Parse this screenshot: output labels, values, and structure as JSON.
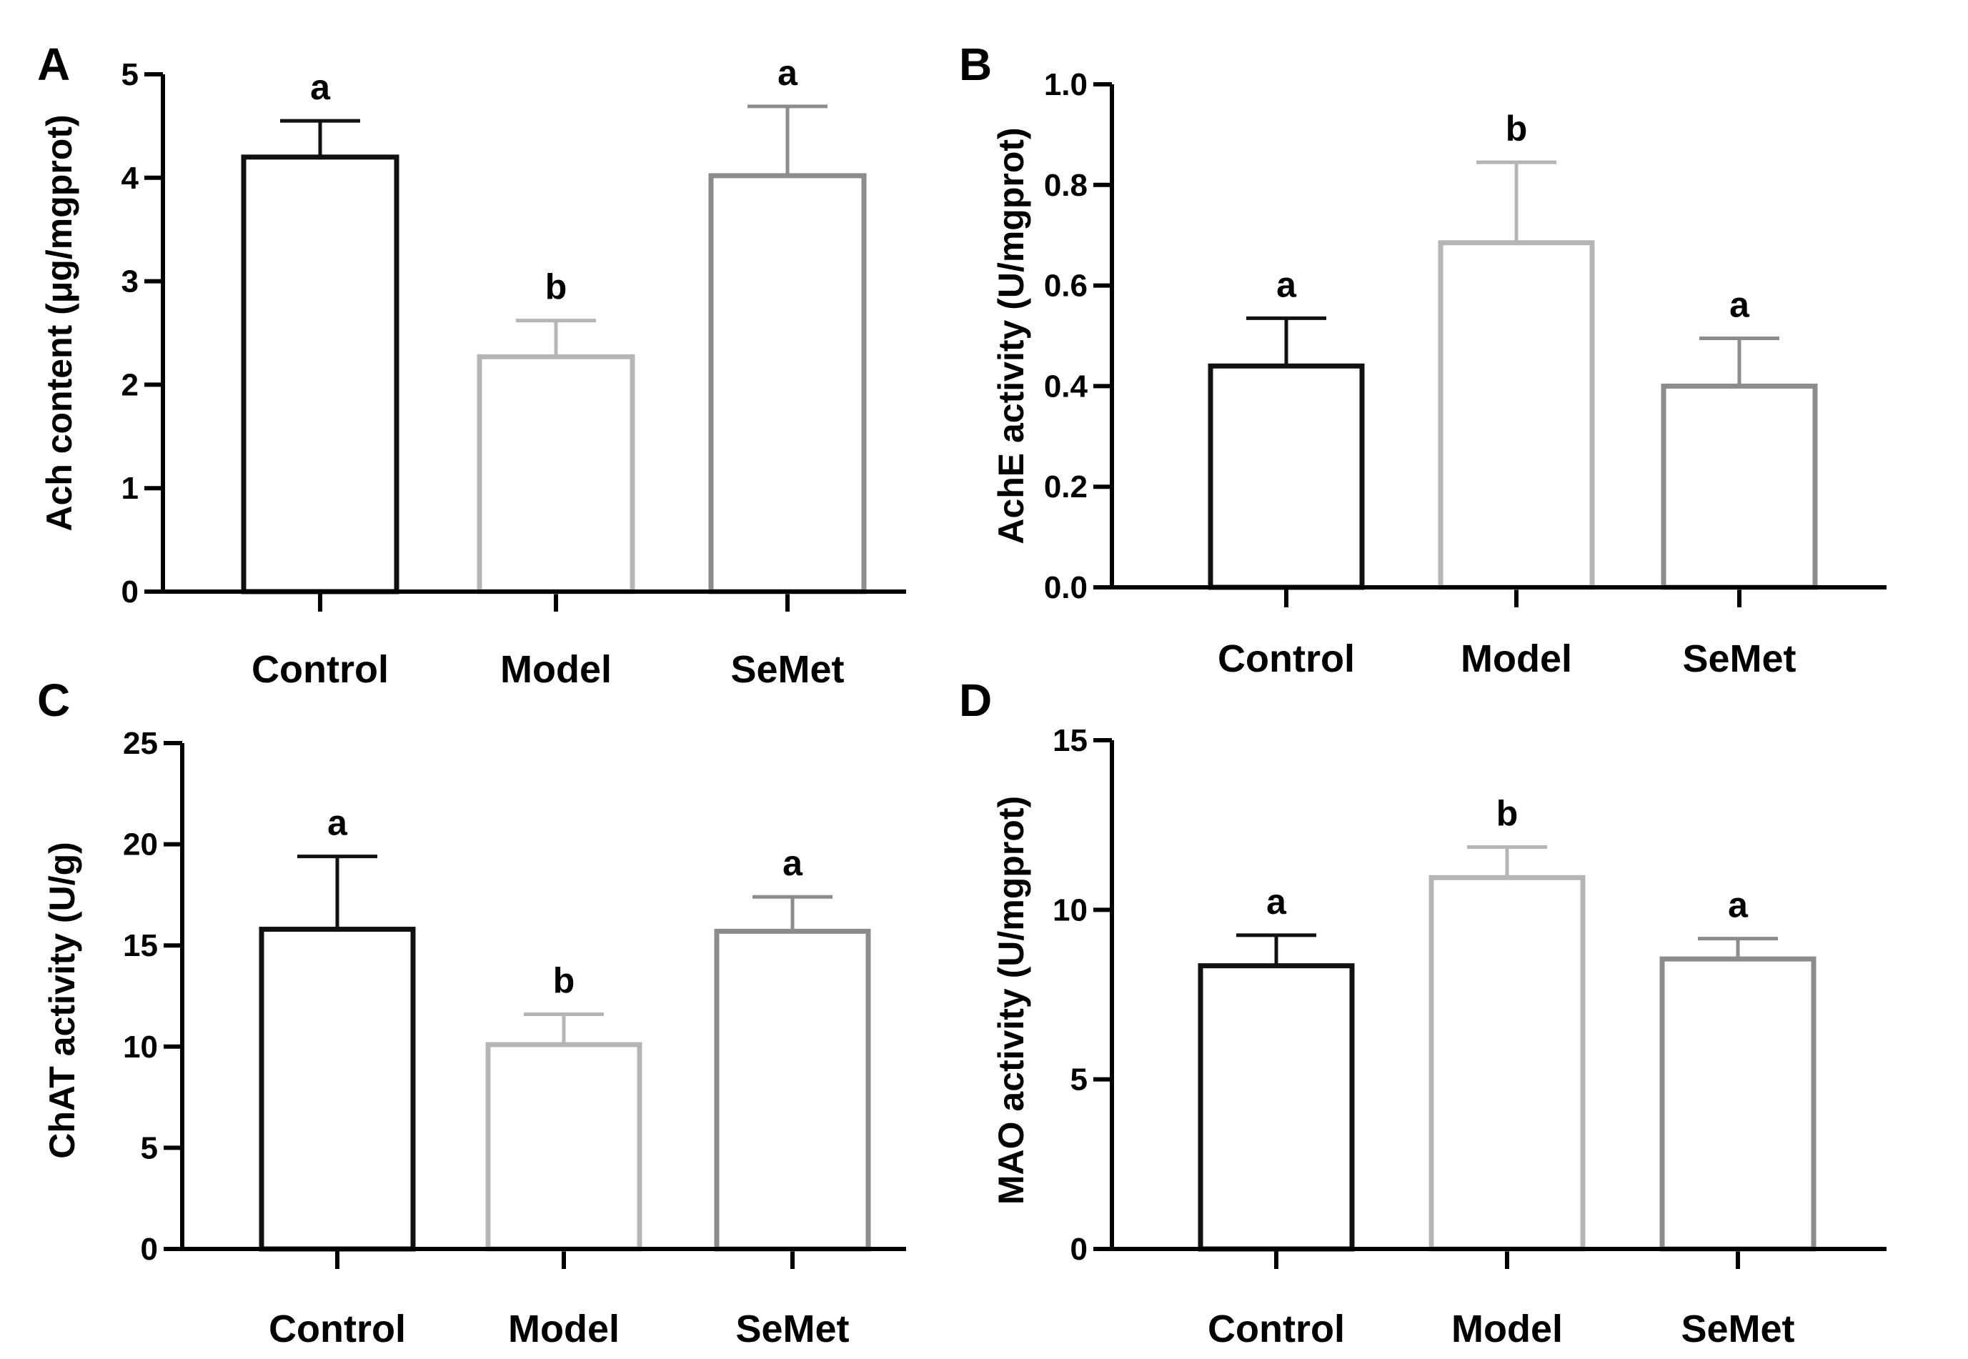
{
  "chart_data": [
    {
      "panel": "A",
      "type": "bar",
      "categories": [
        "Control",
        "Model",
        "SeMet"
      ],
      "values": [
        4.2,
        2.27,
        4.02
      ],
      "errors": [
        0.35,
        0.35,
        0.67
      ],
      "significance": [
        "a",
        "b",
        "a"
      ],
      "ylabel": "Ach content (μg/mgprot)",
      "ylim": [
        0,
        5
      ],
      "yticks": [
        "0",
        "1",
        "2",
        "3",
        "4",
        "5"
      ],
      "bar_colors": [
        "#111111",
        "#b5b5b5",
        "#8c8c8c"
      ]
    },
    {
      "panel": "B",
      "type": "bar",
      "categories": [
        "Control",
        "Model",
        "SeMet"
      ],
      "values": [
        0.44,
        0.685,
        0.4
      ],
      "errors": [
        0.095,
        0.16,
        0.095
      ],
      "significance": [
        "a",
        "b",
        "a"
      ],
      "ylabel": "AchE activity (U/mgprot)",
      "ylim": [
        0,
        1.0
      ],
      "yticks": [
        "0.0",
        "0.2",
        "0.4",
        "0.6",
        "0.8",
        "1.0"
      ],
      "bar_colors": [
        "#111111",
        "#b5b5b5",
        "#8c8c8c"
      ]
    },
    {
      "panel": "C",
      "type": "bar",
      "categories": [
        "Control",
        "Model",
        "SeMet"
      ],
      "values": [
        15.8,
        10.1,
        15.7
      ],
      "errors": [
        3.6,
        1.5,
        1.7
      ],
      "significance": [
        "a",
        "b",
        "a"
      ],
      "ylabel": "ChAT activity (U/g)",
      "ylim": [
        0,
        25
      ],
      "yticks": [
        "0",
        "5",
        "10",
        "15",
        "20",
        "25"
      ],
      "bar_colors": [
        "#111111",
        "#b5b5b5",
        "#8c8c8c"
      ]
    },
    {
      "panel": "D",
      "type": "bar",
      "categories": [
        "Control",
        "Model",
        "SeMet"
      ],
      "values": [
        8.35,
        10.95,
        8.55
      ],
      "errors": [
        0.9,
        0.9,
        0.6
      ],
      "significance": [
        "a",
        "b",
        "a"
      ],
      "ylabel": "MAO activity (U/mgprot)",
      "ylim": [
        0,
        15
      ],
      "yticks": [
        "0",
        "5",
        "10",
        "15"
      ],
      "bar_colors": [
        "#111111",
        "#b5b5b5",
        "#8c8c8c"
      ]
    }
  ]
}
